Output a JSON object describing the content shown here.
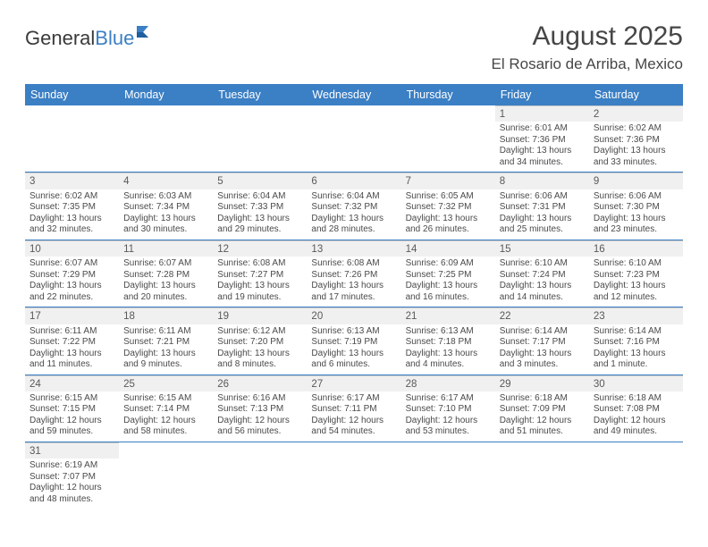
{
  "logo": {
    "part1": "General",
    "part2": "Blue"
  },
  "title": "August 2025",
  "location": "El Rosario de Arriba, Mexico",
  "colors": {
    "header_bg": "#3b7fc4",
    "rule": "#3b7fc4",
    "daynum_bg": "#f0f0f0"
  },
  "day_names": [
    "Sunday",
    "Monday",
    "Tuesday",
    "Wednesday",
    "Thursday",
    "Friday",
    "Saturday"
  ],
  "weeks": [
    [
      null,
      null,
      null,
      null,
      null,
      {
        "n": "1",
        "sr": "Sunrise: 6:01 AM",
        "ss": "Sunset: 7:36 PM",
        "d1": "Daylight: 13 hours",
        "d2": "and 34 minutes."
      },
      {
        "n": "2",
        "sr": "Sunrise: 6:02 AM",
        "ss": "Sunset: 7:36 PM",
        "d1": "Daylight: 13 hours",
        "d2": "and 33 minutes."
      }
    ],
    [
      {
        "n": "3",
        "sr": "Sunrise: 6:02 AM",
        "ss": "Sunset: 7:35 PM",
        "d1": "Daylight: 13 hours",
        "d2": "and 32 minutes."
      },
      {
        "n": "4",
        "sr": "Sunrise: 6:03 AM",
        "ss": "Sunset: 7:34 PM",
        "d1": "Daylight: 13 hours",
        "d2": "and 30 minutes."
      },
      {
        "n": "5",
        "sr": "Sunrise: 6:04 AM",
        "ss": "Sunset: 7:33 PM",
        "d1": "Daylight: 13 hours",
        "d2": "and 29 minutes."
      },
      {
        "n": "6",
        "sr": "Sunrise: 6:04 AM",
        "ss": "Sunset: 7:32 PM",
        "d1": "Daylight: 13 hours",
        "d2": "and 28 minutes."
      },
      {
        "n": "7",
        "sr": "Sunrise: 6:05 AM",
        "ss": "Sunset: 7:32 PM",
        "d1": "Daylight: 13 hours",
        "d2": "and 26 minutes."
      },
      {
        "n": "8",
        "sr": "Sunrise: 6:06 AM",
        "ss": "Sunset: 7:31 PM",
        "d1": "Daylight: 13 hours",
        "d2": "and 25 minutes."
      },
      {
        "n": "9",
        "sr": "Sunrise: 6:06 AM",
        "ss": "Sunset: 7:30 PM",
        "d1": "Daylight: 13 hours",
        "d2": "and 23 minutes."
      }
    ],
    [
      {
        "n": "10",
        "sr": "Sunrise: 6:07 AM",
        "ss": "Sunset: 7:29 PM",
        "d1": "Daylight: 13 hours",
        "d2": "and 22 minutes."
      },
      {
        "n": "11",
        "sr": "Sunrise: 6:07 AM",
        "ss": "Sunset: 7:28 PM",
        "d1": "Daylight: 13 hours",
        "d2": "and 20 minutes."
      },
      {
        "n": "12",
        "sr": "Sunrise: 6:08 AM",
        "ss": "Sunset: 7:27 PM",
        "d1": "Daylight: 13 hours",
        "d2": "and 19 minutes."
      },
      {
        "n": "13",
        "sr": "Sunrise: 6:08 AM",
        "ss": "Sunset: 7:26 PM",
        "d1": "Daylight: 13 hours",
        "d2": "and 17 minutes."
      },
      {
        "n": "14",
        "sr": "Sunrise: 6:09 AM",
        "ss": "Sunset: 7:25 PM",
        "d1": "Daylight: 13 hours",
        "d2": "and 16 minutes."
      },
      {
        "n": "15",
        "sr": "Sunrise: 6:10 AM",
        "ss": "Sunset: 7:24 PM",
        "d1": "Daylight: 13 hours",
        "d2": "and 14 minutes."
      },
      {
        "n": "16",
        "sr": "Sunrise: 6:10 AM",
        "ss": "Sunset: 7:23 PM",
        "d1": "Daylight: 13 hours",
        "d2": "and 12 minutes."
      }
    ],
    [
      {
        "n": "17",
        "sr": "Sunrise: 6:11 AM",
        "ss": "Sunset: 7:22 PM",
        "d1": "Daylight: 13 hours",
        "d2": "and 11 minutes."
      },
      {
        "n": "18",
        "sr": "Sunrise: 6:11 AM",
        "ss": "Sunset: 7:21 PM",
        "d1": "Daylight: 13 hours",
        "d2": "and 9 minutes."
      },
      {
        "n": "19",
        "sr": "Sunrise: 6:12 AM",
        "ss": "Sunset: 7:20 PM",
        "d1": "Daylight: 13 hours",
        "d2": "and 8 minutes."
      },
      {
        "n": "20",
        "sr": "Sunrise: 6:13 AM",
        "ss": "Sunset: 7:19 PM",
        "d1": "Daylight: 13 hours",
        "d2": "and 6 minutes."
      },
      {
        "n": "21",
        "sr": "Sunrise: 6:13 AM",
        "ss": "Sunset: 7:18 PM",
        "d1": "Daylight: 13 hours",
        "d2": "and 4 minutes."
      },
      {
        "n": "22",
        "sr": "Sunrise: 6:14 AM",
        "ss": "Sunset: 7:17 PM",
        "d1": "Daylight: 13 hours",
        "d2": "and 3 minutes."
      },
      {
        "n": "23",
        "sr": "Sunrise: 6:14 AM",
        "ss": "Sunset: 7:16 PM",
        "d1": "Daylight: 13 hours",
        "d2": "and 1 minute."
      }
    ],
    [
      {
        "n": "24",
        "sr": "Sunrise: 6:15 AM",
        "ss": "Sunset: 7:15 PM",
        "d1": "Daylight: 12 hours",
        "d2": "and 59 minutes."
      },
      {
        "n": "25",
        "sr": "Sunrise: 6:15 AM",
        "ss": "Sunset: 7:14 PM",
        "d1": "Daylight: 12 hours",
        "d2": "and 58 minutes."
      },
      {
        "n": "26",
        "sr": "Sunrise: 6:16 AM",
        "ss": "Sunset: 7:13 PM",
        "d1": "Daylight: 12 hours",
        "d2": "and 56 minutes."
      },
      {
        "n": "27",
        "sr": "Sunrise: 6:17 AM",
        "ss": "Sunset: 7:11 PM",
        "d1": "Daylight: 12 hours",
        "d2": "and 54 minutes."
      },
      {
        "n": "28",
        "sr": "Sunrise: 6:17 AM",
        "ss": "Sunset: 7:10 PM",
        "d1": "Daylight: 12 hours",
        "d2": "and 53 minutes."
      },
      {
        "n": "29",
        "sr": "Sunrise: 6:18 AM",
        "ss": "Sunset: 7:09 PM",
        "d1": "Daylight: 12 hours",
        "d2": "and 51 minutes."
      },
      {
        "n": "30",
        "sr": "Sunrise: 6:18 AM",
        "ss": "Sunset: 7:08 PM",
        "d1": "Daylight: 12 hours",
        "d2": "and 49 minutes."
      }
    ],
    [
      {
        "n": "31",
        "sr": "Sunrise: 6:19 AM",
        "ss": "Sunset: 7:07 PM",
        "d1": "Daylight: 12 hours",
        "d2": "and 48 minutes."
      },
      null,
      null,
      null,
      null,
      null,
      null
    ]
  ]
}
